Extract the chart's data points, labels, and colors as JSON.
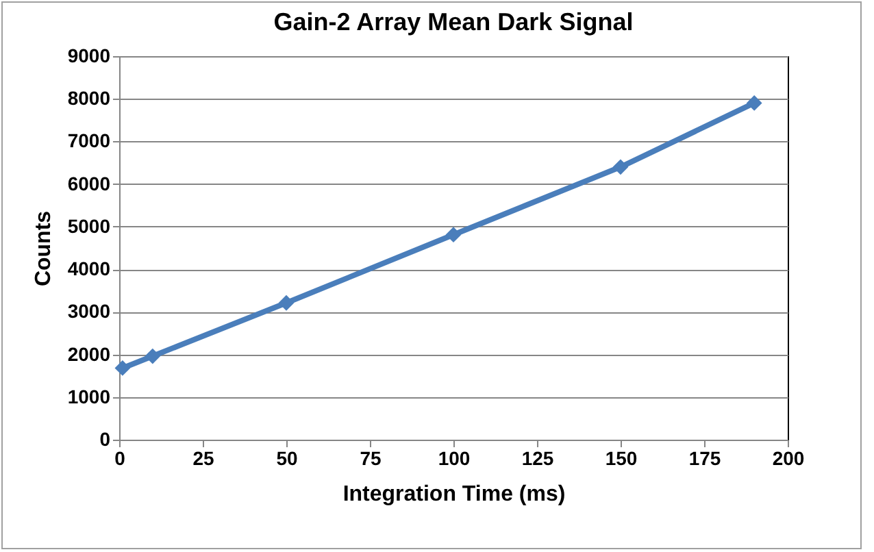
{
  "chart_data": {
    "type": "line",
    "title": "Gain-2 Array Mean Dark Signal",
    "xlabel": "Integration Time (ms)",
    "ylabel": "Counts",
    "x": [
      1,
      10,
      50,
      100,
      150,
      190
    ],
    "series": [
      {
        "color": "#4a7ebb",
        "values": [
          1680,
          1960,
          3210,
          4810,
          6400,
          7900
        ]
      }
    ],
    "xlim": [
      0,
      200
    ],
    "xticks": [
      0,
      25,
      50,
      75,
      100,
      125,
      150,
      175,
      200
    ],
    "ylim": [
      0,
      9000
    ],
    "yticks": [
      0,
      1000,
      2000,
      3000,
      4000,
      5000,
      6000,
      7000,
      8000,
      9000
    ],
    "grid": "y",
    "marker": "diamond",
    "line_style": "solid"
  }
}
